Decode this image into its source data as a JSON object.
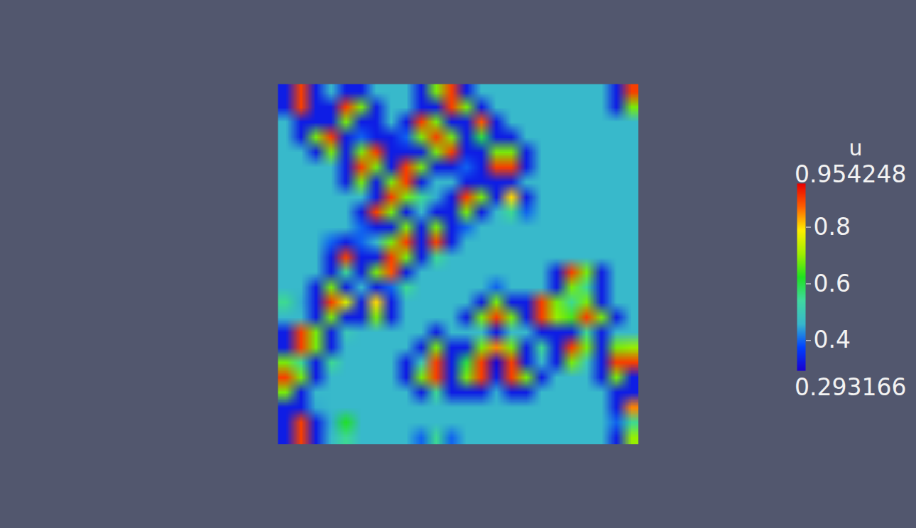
{
  "chart_data": {
    "type": "heatmap",
    "tick_labels": false,
    "cells": [
      [
        0.33,
        0.9,
        0.33,
        0.46,
        0.33,
        0.33,
        0.46,
        0.46,
        0.46,
        0.33,
        0.68,
        0.9,
        0.33,
        0.46,
        0.46,
        0.46,
        0.46,
        0.46,
        0.46,
        0.46,
        0.46,
        0.46,
        0.33,
        0.9
      ],
      [
        0.33,
        0.9,
        0.33,
        0.33,
        0.9,
        0.68,
        0.33,
        0.46,
        0.46,
        0.33,
        0.33,
        0.9,
        0.68,
        0.33,
        0.46,
        0.46,
        0.46,
        0.46,
        0.46,
        0.46,
        0.46,
        0.46,
        0.33,
        0.68
      ],
      [
        0.46,
        0.33,
        0.33,
        0.33,
        0.68,
        0.33,
        0.33,
        0.46,
        0.33,
        0.9,
        0.68,
        0.33,
        0.33,
        0.88,
        0.33,
        0.46,
        0.46,
        0.46,
        0.46,
        0.46,
        0.46,
        0.46,
        0.46,
        0.46
      ],
      [
        0.46,
        0.33,
        0.68,
        0.9,
        0.33,
        0.4,
        0.33,
        0.33,
        0.4,
        0.68,
        0.9,
        0.68,
        0.33,
        0.6,
        0.33,
        0.33,
        0.46,
        0.46,
        0.46,
        0.46,
        0.46,
        0.46,
        0.46,
        0.46
      ],
      [
        0.46,
        0.46,
        0.33,
        0.68,
        0.33,
        0.68,
        0.9,
        0.33,
        0.33,
        0.33,
        0.68,
        0.9,
        0.33,
        0.33,
        0.68,
        0.68,
        0.33,
        0.46,
        0.46,
        0.46,
        0.46,
        0.46,
        0.46,
        0.46
      ],
      [
        0.46,
        0.46,
        0.46,
        0.46,
        0.33,
        0.9,
        0.68,
        0.33,
        0.9,
        0.68,
        0.33,
        0.33,
        0.4,
        0.33,
        0.9,
        0.9,
        0.33,
        0.46,
        0.46,
        0.46,
        0.46,
        0.46,
        0.46,
        0.46
      ],
      [
        0.46,
        0.46,
        0.46,
        0.46,
        0.33,
        0.68,
        0.33,
        0.68,
        0.9,
        0.33,
        0.46,
        0.46,
        0.33,
        0.33,
        0.33,
        0.33,
        0.46,
        0.46,
        0.46,
        0.46,
        0.46,
        0.46,
        0.46,
        0.46
      ],
      [
        0.46,
        0.46,
        0.46,
        0.46,
        0.46,
        0.46,
        0.33,
        0.9,
        0.68,
        0.55,
        0.45,
        0.33,
        0.9,
        0.68,
        0.33,
        0.8,
        0.33,
        0.46,
        0.46,
        0.46,
        0.46,
        0.46,
        0.46,
        0.46
      ],
      [
        0.46,
        0.46,
        0.46,
        0.46,
        0.46,
        0.33,
        0.9,
        0.68,
        0.33,
        0.46,
        0.33,
        0.33,
        0.68,
        0.33,
        0.46,
        0.55,
        0.4,
        0.46,
        0.46,
        0.46,
        0.46,
        0.46,
        0.46,
        0.46
      ],
      [
        0.46,
        0.46,
        0.46,
        0.46,
        0.46,
        0.4,
        0.33,
        0.33,
        0.68,
        0.33,
        0.68,
        0.33,
        0.4,
        0.46,
        0.46,
        0.46,
        0.46,
        0.46,
        0.46,
        0.46,
        0.46,
        0.46,
        0.46,
        0.46
      ],
      [
        0.46,
        0.46,
        0.46,
        0.4,
        0.33,
        0.4,
        0.46,
        0.68,
        0.9,
        0.33,
        0.9,
        0.33,
        0.46,
        0.46,
        0.46,
        0.46,
        0.46,
        0.46,
        0.46,
        0.46,
        0.46,
        0.46,
        0.46,
        0.46
      ],
      [
        0.46,
        0.46,
        0.46,
        0.33,
        0.9,
        0.33,
        0.33,
        0.9,
        0.68,
        0.33,
        0.55,
        0.46,
        0.46,
        0.46,
        0.46,
        0.46,
        0.46,
        0.46,
        0.46,
        0.46,
        0.46,
        0.46,
        0.46,
        0.46
      ],
      [
        0.46,
        0.46,
        0.46,
        0.33,
        0.55,
        0.33,
        0.68,
        0.88,
        0.33,
        0.46,
        0.46,
        0.46,
        0.46,
        0.46,
        0.46,
        0.46,
        0.46,
        0.46,
        0.33,
        0.9,
        0.68,
        0.33,
        0.46,
        0.46
      ],
      [
        0.46,
        0.46,
        0.33,
        0.68,
        0.33,
        0.46,
        0.33,
        0.4,
        0.55,
        0.46,
        0.46,
        0.46,
        0.46,
        0.46,
        0.4,
        0.46,
        0.46,
        0.46,
        0.33,
        0.68,
        0.55,
        0.33,
        0.46,
        0.46
      ],
      [
        0.55,
        0.45,
        0.33,
        0.9,
        0.75,
        0.33,
        0.8,
        0.33,
        0.46,
        0.46,
        0.46,
        0.46,
        0.46,
        0.33,
        0.68,
        0.33,
        0.33,
        0.9,
        0.68,
        0.55,
        0.68,
        0.33,
        0.46,
        0.46
      ],
      [
        0.46,
        0.46,
        0.33,
        0.68,
        0.33,
        0.33,
        0.68,
        0.33,
        0.46,
        0.46,
        0.46,
        0.46,
        0.33,
        0.68,
        0.9,
        0.68,
        0.33,
        0.9,
        0.7,
        0.65,
        0.9,
        0.68,
        0.33,
        0.46
      ],
      [
        0.33,
        0.9,
        0.68,
        0.33,
        0.5,
        0.46,
        0.46,
        0.46,
        0.46,
        0.46,
        0.33,
        0.46,
        0.46,
        0.46,
        0.33,
        0.46,
        0.46,
        0.33,
        0.33,
        0.33,
        0.55,
        0.33,
        0.46,
        0.46
      ],
      [
        0.33,
        0.9,
        0.68,
        0.33,
        0.46,
        0.46,
        0.46,
        0.46,
        0.46,
        0.33,
        0.68,
        0.33,
        0.33,
        0.68,
        0.85,
        0.68,
        0.33,
        0.55,
        0.33,
        0.9,
        0.68,
        0.33,
        0.68,
        0.7
      ],
      [
        0.68,
        0.55,
        0.33,
        0.55,
        0.46,
        0.46,
        0.46,
        0.46,
        0.33,
        0.5,
        0.9,
        0.33,
        0.6,
        0.9,
        0.3,
        0.9,
        0.33,
        0.46,
        0.33,
        0.68,
        0.5,
        0.33,
        0.9,
        0.9
      ],
      [
        0.9,
        0.68,
        0.33,
        0.46,
        0.46,
        0.46,
        0.46,
        0.46,
        0.33,
        0.68,
        0.9,
        0.33,
        0.68,
        0.9,
        0.33,
        0.9,
        0.68,
        0.33,
        0.46,
        0.46,
        0.46,
        0.33,
        0.68,
        0.33
      ],
      [
        0.68,
        0.33,
        0.46,
        0.46,
        0.46,
        0.46,
        0.46,
        0.46,
        0.46,
        0.33,
        0.55,
        0.33,
        0.33,
        0.33,
        0.45,
        0.33,
        0.33,
        0.46,
        0.46,
        0.46,
        0.46,
        0.46,
        0.33,
        0.33
      ],
      [
        0.33,
        0.33,
        0.45,
        0.46,
        0.46,
        0.46,
        0.46,
        0.46,
        0.46,
        0.46,
        0.46,
        0.46,
        0.46,
        0.46,
        0.46,
        0.46,
        0.46,
        0.46,
        0.46,
        0.46,
        0.46,
        0.46,
        0.33,
        0.85
      ],
      [
        0.33,
        0.9,
        0.33,
        0.45,
        0.62,
        0.46,
        0.46,
        0.46,
        0.46,
        0.46,
        0.46,
        0.46,
        0.46,
        0.46,
        0.46,
        0.46,
        0.46,
        0.46,
        0.46,
        0.46,
        0.46,
        0.46,
        0.4,
        0.55
      ],
      [
        0.33,
        0.9,
        0.33,
        0.46,
        0.55,
        0.46,
        0.46,
        0.46,
        0.46,
        0.4,
        0.55,
        0.4,
        0.46,
        0.46,
        0.46,
        0.46,
        0.46,
        0.46,
        0.46,
        0.46,
        0.46,
        0.46,
        0.33,
        0.7
      ]
    ],
    "colorbar": {
      "title": "u",
      "range": [
        0.293166,
        0.954248
      ],
      "ticks": [
        0.4,
        0.6,
        0.8
      ]
    }
  }
}
